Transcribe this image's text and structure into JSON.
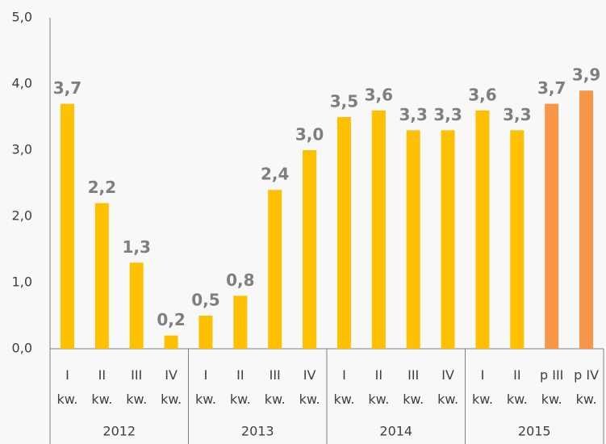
{
  "chart_data": {
    "type": "bar",
    "categories": [
      "I kw.",
      "II kw.",
      "III kw.",
      "IV kw.",
      "I kw.",
      "II kw.",
      "III kw.",
      "IV kw.",
      "I kw.",
      "II kw.",
      "III kw.",
      "IV kw.",
      "I kw.",
      "II kw.",
      "p III kw.",
      "p IV kw."
    ],
    "groups": [
      "2012",
      "2013",
      "2014",
      "2015"
    ],
    "values": [
      3.7,
      2.2,
      1.3,
      0.2,
      0.5,
      0.8,
      2.4,
      3.0,
      3.5,
      3.6,
      3.3,
      3.3,
      3.6,
      3.3,
      3.7,
      3.9
    ],
    "value_labels": [
      "3,7",
      "2,2",
      "1,3",
      "0,2",
      "0,5",
      "0,8",
      "2,4",
      "3,0",
      "3,5",
      "3,6",
      "3,3",
      "3,3",
      "3,6",
      "3,3",
      "3,7",
      "3,9"
    ],
    "colors": [
      "#ffc000",
      "#ffc000",
      "#ffc000",
      "#ffc000",
      "#ffc000",
      "#ffc000",
      "#ffc000",
      "#ffc000",
      "#ffc000",
      "#ffc000",
      "#ffc000",
      "#ffc000",
      "#ffc000",
      "#ffc000",
      "#f79646",
      "#f79646"
    ],
    "ylim": [
      0,
      5
    ],
    "yticks": [
      {
        "value": 0,
        "label": "0,0"
      },
      {
        "value": 1,
        "label": "1,0"
      },
      {
        "value": 2,
        "label": "2,0"
      },
      {
        "value": 3,
        "label": "3,0"
      },
      {
        "value": 4,
        "label": "4,0"
      },
      {
        "value": 5,
        "label": "5,0"
      }
    ],
    "grid": false
  }
}
